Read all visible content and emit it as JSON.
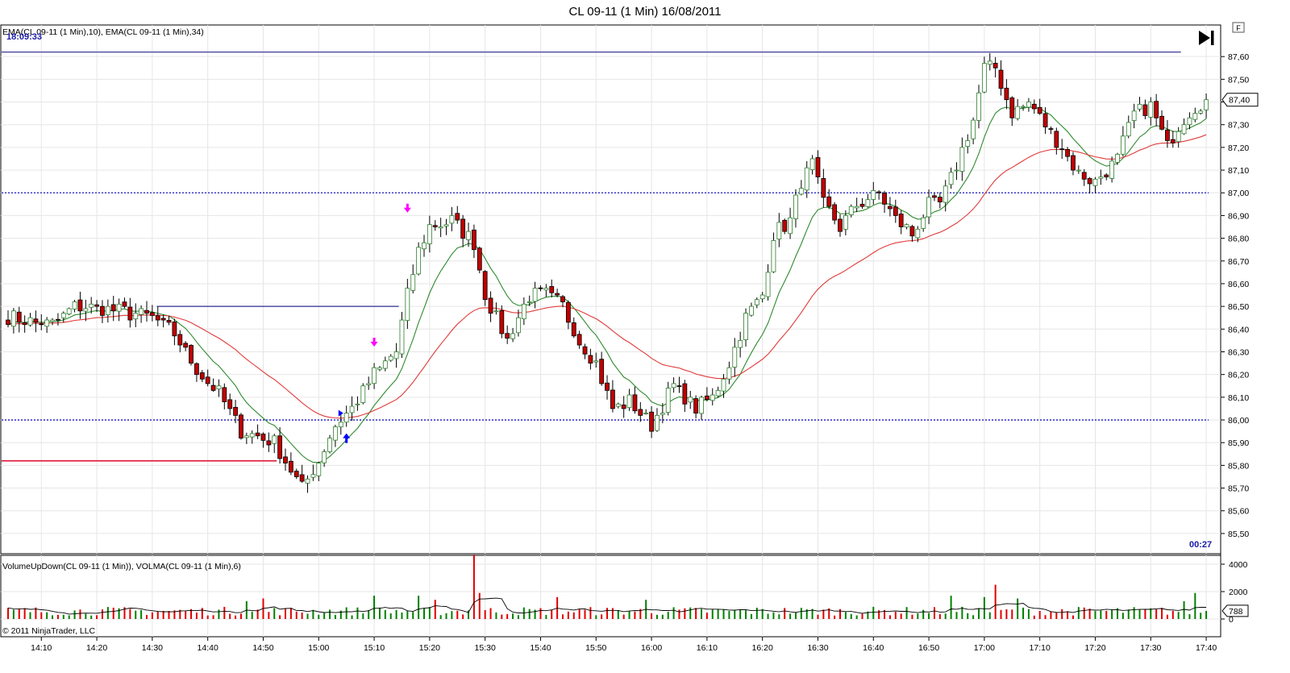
{
  "chart_data": {
    "type": "candlestick",
    "title": "CL 09-11 (1 Min)  16/08/2011",
    "price_indicator_label": "EMA(CL 09-11 (1 Min),10), EMA(CL 09-11 (1 Min),34)",
    "volume_indicator_label": "VolumeUpDown(CL 09-11 (1 Min)), VOLMA(CL 09-11 (1 Min),6)",
    "top_left_time": "18:09:33",
    "bar_countdown": "00:27",
    "copyright": "© 2011 NinjaTrader, LLC",
    "flag_label": "F",
    "last_price_label": "87,40",
    "last_volume_label": "788",
    "ylim": [
      85.45,
      87.7
    ],
    "yticks": [
      "85,50",
      "85,60",
      "85,70",
      "85,80",
      "85,90",
      "86,00",
      "86,10",
      "86,20",
      "86,30",
      "86,40",
      "86,50",
      "86,60",
      "86,70",
      "86,80",
      "86,90",
      "87,00",
      "87,10",
      "87,20",
      "87,30",
      "87,40",
      "87,50",
      "87,60"
    ],
    "ytick_values": [
      85.5,
      85.6,
      85.7,
      85.8,
      85.9,
      86.0,
      86.1,
      86.2,
      86.3,
      86.4,
      86.5,
      86.6,
      86.7,
      86.8,
      86.9,
      87.0,
      87.1,
      87.2,
      87.3,
      87.4,
      87.5,
      87.6
    ],
    "volume_ylim": [
      0,
      5000
    ],
    "volume_ticks": [
      "4000",
      "2000",
      "0"
    ],
    "volume_tick_values": [
      4000,
      2000,
      0
    ],
    "xticks": [
      "14:10",
      "14:20",
      "14:30",
      "14:40",
      "14:50",
      "15:00",
      "15:10",
      "15:20",
      "15:30",
      "15:40",
      "15:50",
      "16:00",
      "16:10",
      "16:20",
      "16:30",
      "16:40",
      "16:50",
      "17:00",
      "17:10",
      "17:20",
      "17:30",
      "17:40"
    ],
    "anchors": [
      {
        "t": 0,
        "p": 86.45
      },
      {
        "t": 8,
        "p": 86.42
      },
      {
        "t": 12,
        "p": 86.5
      },
      {
        "t": 20,
        "p": 86.48
      },
      {
        "t": 26,
        "p": 86.45
      },
      {
        "t": 30,
        "p": 86.38
      },
      {
        "t": 34,
        "p": 86.22
      },
      {
        "t": 38,
        "p": 86.12
      },
      {
        "t": 42,
        "p": 85.95
      },
      {
        "t": 48,
        "p": 85.9
      },
      {
        "t": 53,
        "p": 85.7
      },
      {
        "t": 56,
        "p": 85.82
      },
      {
        "t": 59,
        "p": 85.98
      },
      {
        "t": 62,
        "p": 86.05
      },
      {
        "t": 66,
        "p": 86.2
      },
      {
        "t": 70,
        "p": 86.3
      },
      {
        "t": 72,
        "p": 86.55
      },
      {
        "t": 74,
        "p": 86.75
      },
      {
        "t": 76,
        "p": 86.85
      },
      {
        "t": 80,
        "p": 86.88
      },
      {
        "t": 84,
        "p": 86.78
      },
      {
        "t": 86,
        "p": 86.55
      },
      {
        "t": 90,
        "p": 86.35
      },
      {
        "t": 94,
        "p": 86.55
      },
      {
        "t": 97,
        "p": 86.55
      },
      {
        "t": 100,
        "p": 86.5
      },
      {
        "t": 103,
        "p": 86.35
      },
      {
        "t": 106,
        "p": 86.25
      },
      {
        "t": 109,
        "p": 86.05
      },
      {
        "t": 112,
        "p": 86.08
      },
      {
        "t": 116,
        "p": 85.98
      },
      {
        "t": 120,
        "p": 86.15
      },
      {
        "t": 124,
        "p": 86.05
      },
      {
        "t": 127,
        "p": 86.1
      },
      {
        "t": 130,
        "p": 86.25
      },
      {
        "t": 133,
        "p": 86.45
      },
      {
        "t": 136,
        "p": 86.55
      },
      {
        "t": 138,
        "p": 86.82
      },
      {
        "t": 141,
        "p": 86.88
      },
      {
        "t": 143,
        "p": 87.05
      },
      {
        "t": 145,
        "p": 87.12
      },
      {
        "t": 147,
        "p": 86.95
      },
      {
        "t": 150,
        "p": 86.85
      },
      {
        "t": 153,
        "p": 86.95
      },
      {
        "t": 157,
        "p": 87.0
      },
      {
        "t": 160,
        "p": 86.88
      },
      {
        "t": 163,
        "p": 86.82
      },
      {
        "t": 166,
        "p": 86.95
      },
      {
        "t": 168,
        "p": 86.95
      },
      {
        "t": 171,
        "p": 87.12
      },
      {
        "t": 174,
        "p": 87.32
      },
      {
        "t": 176,
        "p": 87.55
      },
      {
        "t": 178,
        "p": 87.55
      },
      {
        "t": 181,
        "p": 87.35
      },
      {
        "t": 184,
        "p": 87.4
      },
      {
        "t": 187,
        "p": 87.3
      },
      {
        "t": 190,
        "p": 87.2
      },
      {
        "t": 193,
        "p": 87.08
      },
      {
        "t": 196,
        "p": 87.05
      },
      {
        "t": 200,
        "p": 87.15
      },
      {
        "t": 203,
        "p": 87.35
      },
      {
        "t": 206,
        "p": 87.38
      },
      {
        "t": 209,
        "p": 87.2
      },
      {
        "t": 211,
        "p": 87.3
      },
      {
        "t": 214,
        "p": 87.38
      },
      {
        "t": 216,
        "p": 87.4
      }
    ],
    "volume_spikes": [
      {
        "t": 84,
        "v": 4700
      },
      {
        "t": 85,
        "v": 1900
      },
      {
        "t": 66,
        "v": 1700
      },
      {
        "t": 74,
        "v": 1700
      },
      {
        "t": 77,
        "v": 1400
      },
      {
        "t": 170,
        "v": 1700
      },
      {
        "t": 176,
        "v": 1600
      },
      {
        "t": 178,
        "v": 2500
      },
      {
        "t": 182,
        "v": 1500
      },
      {
        "t": 46,
        "v": 1500
      },
      {
        "t": 115,
        "v": 1400
      },
      {
        "t": 43,
        "v": 1300
      },
      {
        "t": 99,
        "v": 1600
      },
      {
        "t": 214,
        "v": 1900
      },
      {
        "t": 212,
        "v": 1300
      }
    ],
    "horizontal_lines": [
      {
        "price": 87.62,
        "color": "#2d2d8f",
        "style": "solid",
        "from": 0,
        "to": 211
      },
      {
        "price": 87.0,
        "color": "#3a3ad0",
        "style": "dotted",
        "from": 0,
        "to": 216
      },
      {
        "price": 86.0,
        "color": "#3a3ad0",
        "style": "dotted",
        "from": 0,
        "to": 216
      },
      {
        "price": 86.5,
        "color": "#2d2d8f",
        "style": "solid",
        "from": 28,
        "to": 70
      },
      {
        "price": 85.82,
        "color": "#e02040",
        "style": "solid",
        "from": 0,
        "to": 48
      }
    ],
    "markers": [
      {
        "t": 72,
        "price": 86.92,
        "kind": "arrow-down",
        "color": "#ff00ff"
      },
      {
        "t": 66,
        "price": 86.33,
        "kind": "arrow-down",
        "color": "#ff00ff"
      },
      {
        "t": 61,
        "price": 85.92,
        "kind": "arrow-up",
        "color": "#0000ff"
      },
      {
        "t": 60,
        "price": 86.03,
        "kind": "triangle-right",
        "color": "#0000ff"
      }
    ],
    "bars_count": 217,
    "ema_fast_period": 10,
    "ema_slow_period": 34,
    "colors": {
      "up_fill": "#ffffff",
      "up_stroke": "#2e7d2e",
      "down_fill": "#c00000",
      "down_stroke": "#000000",
      "ema_fast": "#2e8b2e",
      "ema_slow": "#e03a3a",
      "vol_up": "#008000",
      "vol_down": "#e00000",
      "volma": "#000000",
      "grid": "#e6e6e6",
      "axis": "#000000"
    }
  }
}
